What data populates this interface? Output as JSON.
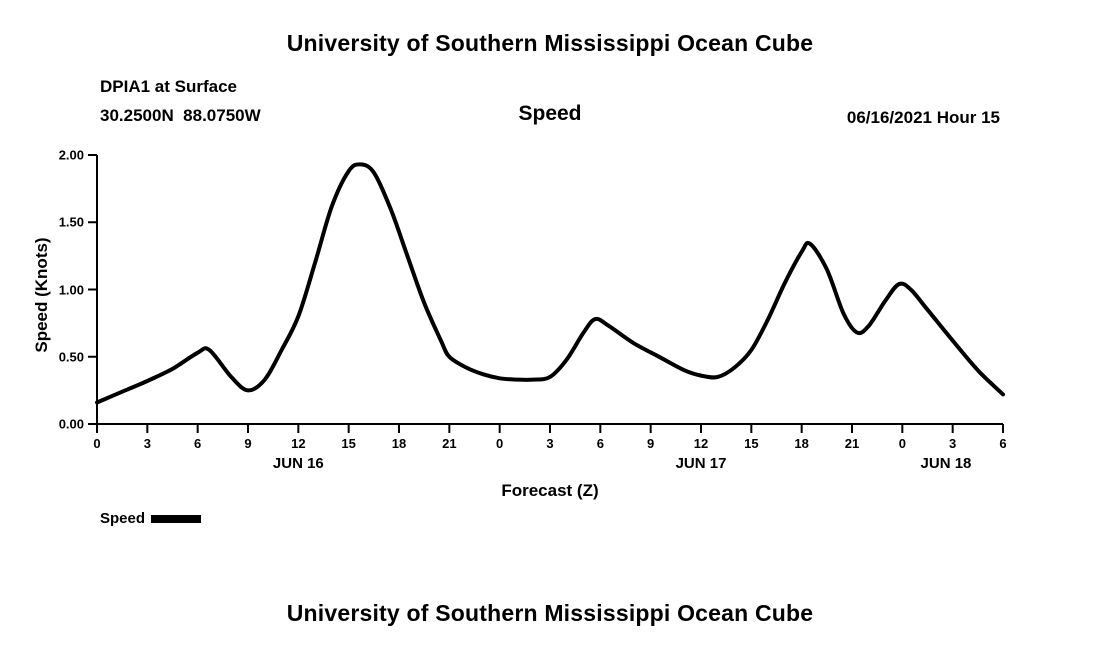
{
  "page": {
    "top_title": "University of Southern Mississippi Ocean Cube",
    "bottom_title": "University of Southern Mississippi Ocean Cube"
  },
  "header": {
    "station": "DPIA1 at Surface",
    "coordinates": "30.2500N  88.0750W",
    "plot_title": "Speed",
    "datetime": "06/16/2021 Hour 15"
  },
  "legend": {
    "label": "Speed",
    "color": "#000000"
  },
  "chart_data": {
    "type": "line",
    "title": "Speed",
    "xlabel": "Forecast (Z)",
    "ylabel": "Speed (Knots)",
    "xlim": [
      0,
      54
    ],
    "ylim": [
      0,
      2
    ],
    "grid": false,
    "legend_position": "bottom-left",
    "line_color": "#000000",
    "x_ticks": [
      0,
      3,
      6,
      9,
      12,
      15,
      18,
      21,
      24,
      27,
      30,
      33,
      36,
      39,
      42,
      45,
      48,
      51,
      54
    ],
    "x_tick_labels": [
      "0",
      "3",
      "6",
      "9",
      "12",
      "15",
      "18",
      "21",
      "0",
      "3",
      "6",
      "9",
      "12",
      "15",
      "18",
      "21",
      "0",
      "3",
      "6"
    ],
    "y_ticks": [
      0,
      0.5,
      1,
      1.5,
      2
    ],
    "y_tick_labels": [
      "0.00",
      "0.50",
      "1.00",
      "1.50",
      "2.00"
    ],
    "day_labels": [
      {
        "label": "JUN 16",
        "hour": 12
      },
      {
        "label": "JUN 17",
        "hour": 36
      },
      {
        "label": "JUN 18",
        "hour": 50.6
      }
    ],
    "series": [
      {
        "name": "Speed",
        "color": "#000000",
        "x": [
          0,
          1.5,
          3,
          4.5,
          6,
          6.7,
          8,
          9,
          10,
          11,
          12,
          13,
          14,
          15,
          15.7,
          16.5,
          17.5,
          18.5,
          19.5,
          20.5,
          21,
          22,
          23,
          24,
          25,
          26,
          27,
          28,
          29,
          29.7,
          30.5,
          32,
          33.5,
          35,
          36,
          37,
          38,
          39,
          40,
          41,
          42,
          42.5,
          43.5,
          44.5,
          45.3,
          46,
          47,
          47.8,
          48.5,
          49.5,
          51,
          52.5,
          54
        ],
        "y": [
          0.16,
          0.24,
          0.32,
          0.41,
          0.53,
          0.55,
          0.35,
          0.25,
          0.33,
          0.55,
          0.8,
          1.2,
          1.62,
          1.88,
          1.93,
          1.87,
          1.6,
          1.25,
          0.9,
          0.62,
          0.5,
          0.42,
          0.37,
          0.34,
          0.33,
          0.33,
          0.35,
          0.48,
          0.68,
          0.78,
          0.73,
          0.6,
          0.5,
          0.4,
          0.36,
          0.35,
          0.42,
          0.55,
          0.78,
          1.05,
          1.28,
          1.34,
          1.15,
          0.82,
          0.68,
          0.73,
          0.92,
          1.04,
          1.0,
          0.85,
          0.62,
          0.4,
          0.22
        ]
      }
    ]
  }
}
